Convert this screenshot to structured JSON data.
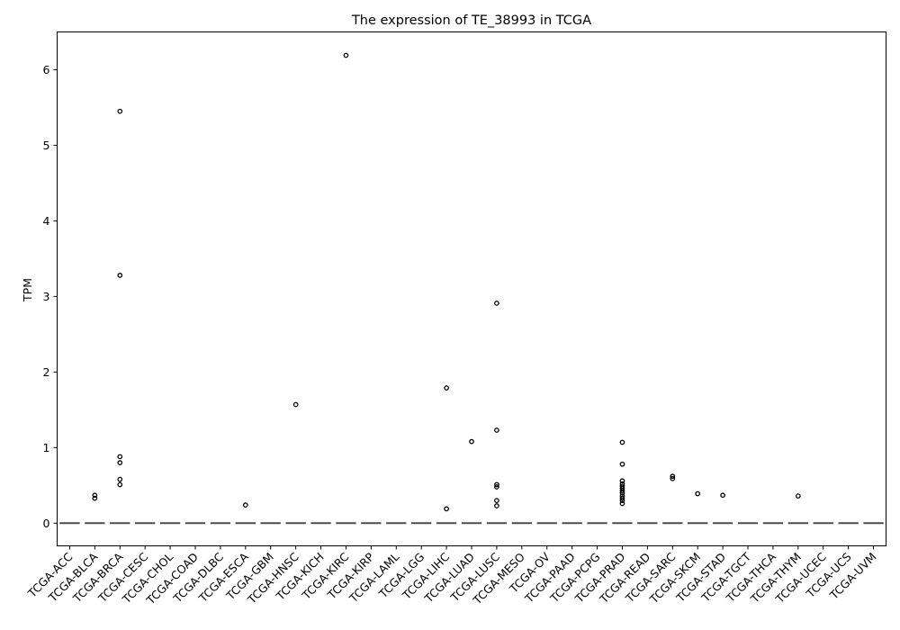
{
  "chart_data": {
    "type": "box",
    "title": "The expression of TE_38993 in TCGA",
    "xlabel": "",
    "ylabel": "TPM",
    "ylim": [
      -0.3,
      6.5
    ],
    "yticks": [
      0,
      1,
      2,
      3,
      4,
      5,
      6
    ],
    "grid": false,
    "categories": [
      "TCGA-ACC",
      "TCGA-BLCA",
      "TCGA-BRCA",
      "TCGA-CESC",
      "TCGA-CHOL",
      "TCGA-COAD",
      "TCGA-DLBC",
      "TCGA-ESCA",
      "TCGA-GBM",
      "TCGA-HNSC",
      "TCGA-KICH",
      "TCGA-KIRC",
      "TCGA-KIRP",
      "TCGA-LAML",
      "TCGA-LGG",
      "TCGA-LIHC",
      "TCGA-LUAD",
      "TCGA-LUSC",
      "TCGA-MESO",
      "TCGA-OV",
      "TCGA-PAAD",
      "TCGA-PCPG",
      "TCGA-PRAD",
      "TCGA-READ",
      "TCGA-SARC",
      "TCGA-SKCM",
      "TCGA-STAD",
      "TCGA-TGCT",
      "TCGA-THCA",
      "TCGA-THYM",
      "TCGA-UCEC",
      "TCGA-UCS",
      "TCGA-UVM"
    ],
    "median": [
      0,
      0,
      0,
      0,
      0,
      0,
      0,
      0,
      0,
      0,
      0,
      0,
      0,
      0,
      0,
      0,
      0,
      0,
      0,
      0,
      0,
      0,
      0,
      0,
      0,
      0,
      0,
      0,
      0,
      0,
      0,
      0,
      0
    ],
    "outliers": [
      [],
      [
        0.37,
        0.33
      ],
      [
        5.45,
        3.28,
        0.88,
        0.8,
        0.58,
        0.51
      ],
      [],
      [],
      [],
      [],
      [
        0.24
      ],
      [],
      [
        1.57
      ],
      [],
      [
        6.19
      ],
      [],
      [],
      [],
      [
        1.79,
        0.19
      ],
      [
        1.08
      ],
      [
        2.91,
        1.23,
        0.51,
        0.48,
        0.3,
        0.23
      ],
      [],
      [],
      [],
      [],
      [
        1.07,
        0.78,
        0.56,
        0.52,
        0.49,
        0.46,
        0.43,
        0.4,
        0.36,
        0.33,
        0.3,
        0.26
      ],
      [],
      [
        0.62,
        0.59
      ],
      [
        0.39
      ],
      [
        0.37
      ],
      [],
      [],
      [
        0.36
      ],
      [],
      [],
      []
    ],
    "colors": {
      "median": "#4d4d4d",
      "outlier_edge": "#000000",
      "axis": "#000000"
    }
  }
}
